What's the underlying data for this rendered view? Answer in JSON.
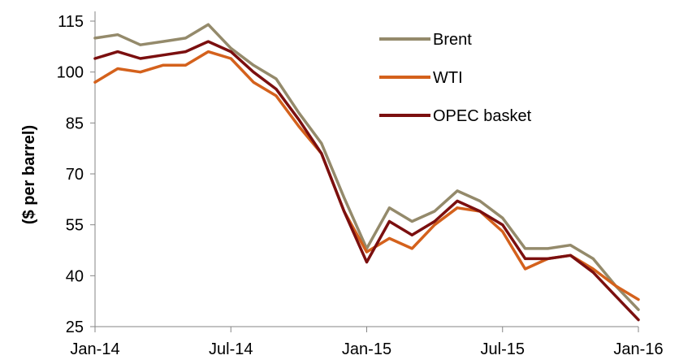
{
  "chart_data": {
    "type": "line",
    "title": "",
    "xlabel": "",
    "ylabel": "($ per barrel)",
    "x": [
      "Jan-14",
      "Feb-14",
      "Mar-14",
      "Apr-14",
      "May-14",
      "Jun-14",
      "Jul-14",
      "Aug-14",
      "Sep-14",
      "Oct-14",
      "Nov-14",
      "Dec-14",
      "Jan-15",
      "Feb-15",
      "Mar-15",
      "Apr-15",
      "May-15",
      "Jun-15",
      "Jul-15",
      "Aug-15",
      "Sep-15",
      "Oct-15",
      "Nov-15",
      "Dec-15",
      "Jan-16"
    ],
    "x_ticks": [
      "Jan-14",
      "Jul-14",
      "Jan-15",
      "Jul-15",
      "Jan-16"
    ],
    "y_ticks": [
      25,
      40,
      55,
      70,
      85,
      100,
      115
    ],
    "ylim": [
      25,
      115
    ],
    "grid": false,
    "legend_position": "top-right",
    "series": [
      {
        "name": "Brent",
        "color": "#948a6b",
        "values": [
          110,
          111,
          108,
          109,
          110,
          114,
          107,
          102,
          98,
          88,
          79,
          63,
          48,
          60,
          56,
          59,
          65,
          62,
          57,
          48,
          48,
          49,
          45,
          37,
          30
        ]
      },
      {
        "name": "WTI",
        "color": "#d4611c",
        "values": [
          97,
          101,
          100,
          102,
          102,
          106,
          104,
          97,
          93,
          84,
          76,
          59,
          47,
          51,
          48,
          55,
          60,
          59,
          53,
          42,
          45,
          46,
          42,
          37,
          33
        ]
      },
      {
        "name": "OPEC basket",
        "color": "#7b0f0f",
        "values": [
          104,
          106,
          104,
          105,
          106,
          109,
          106,
          100,
          95,
          86,
          76,
          59,
          44,
          56,
          52,
          56,
          62,
          59,
          55,
          45,
          45,
          46,
          41,
          34,
          27
        ]
      }
    ]
  }
}
